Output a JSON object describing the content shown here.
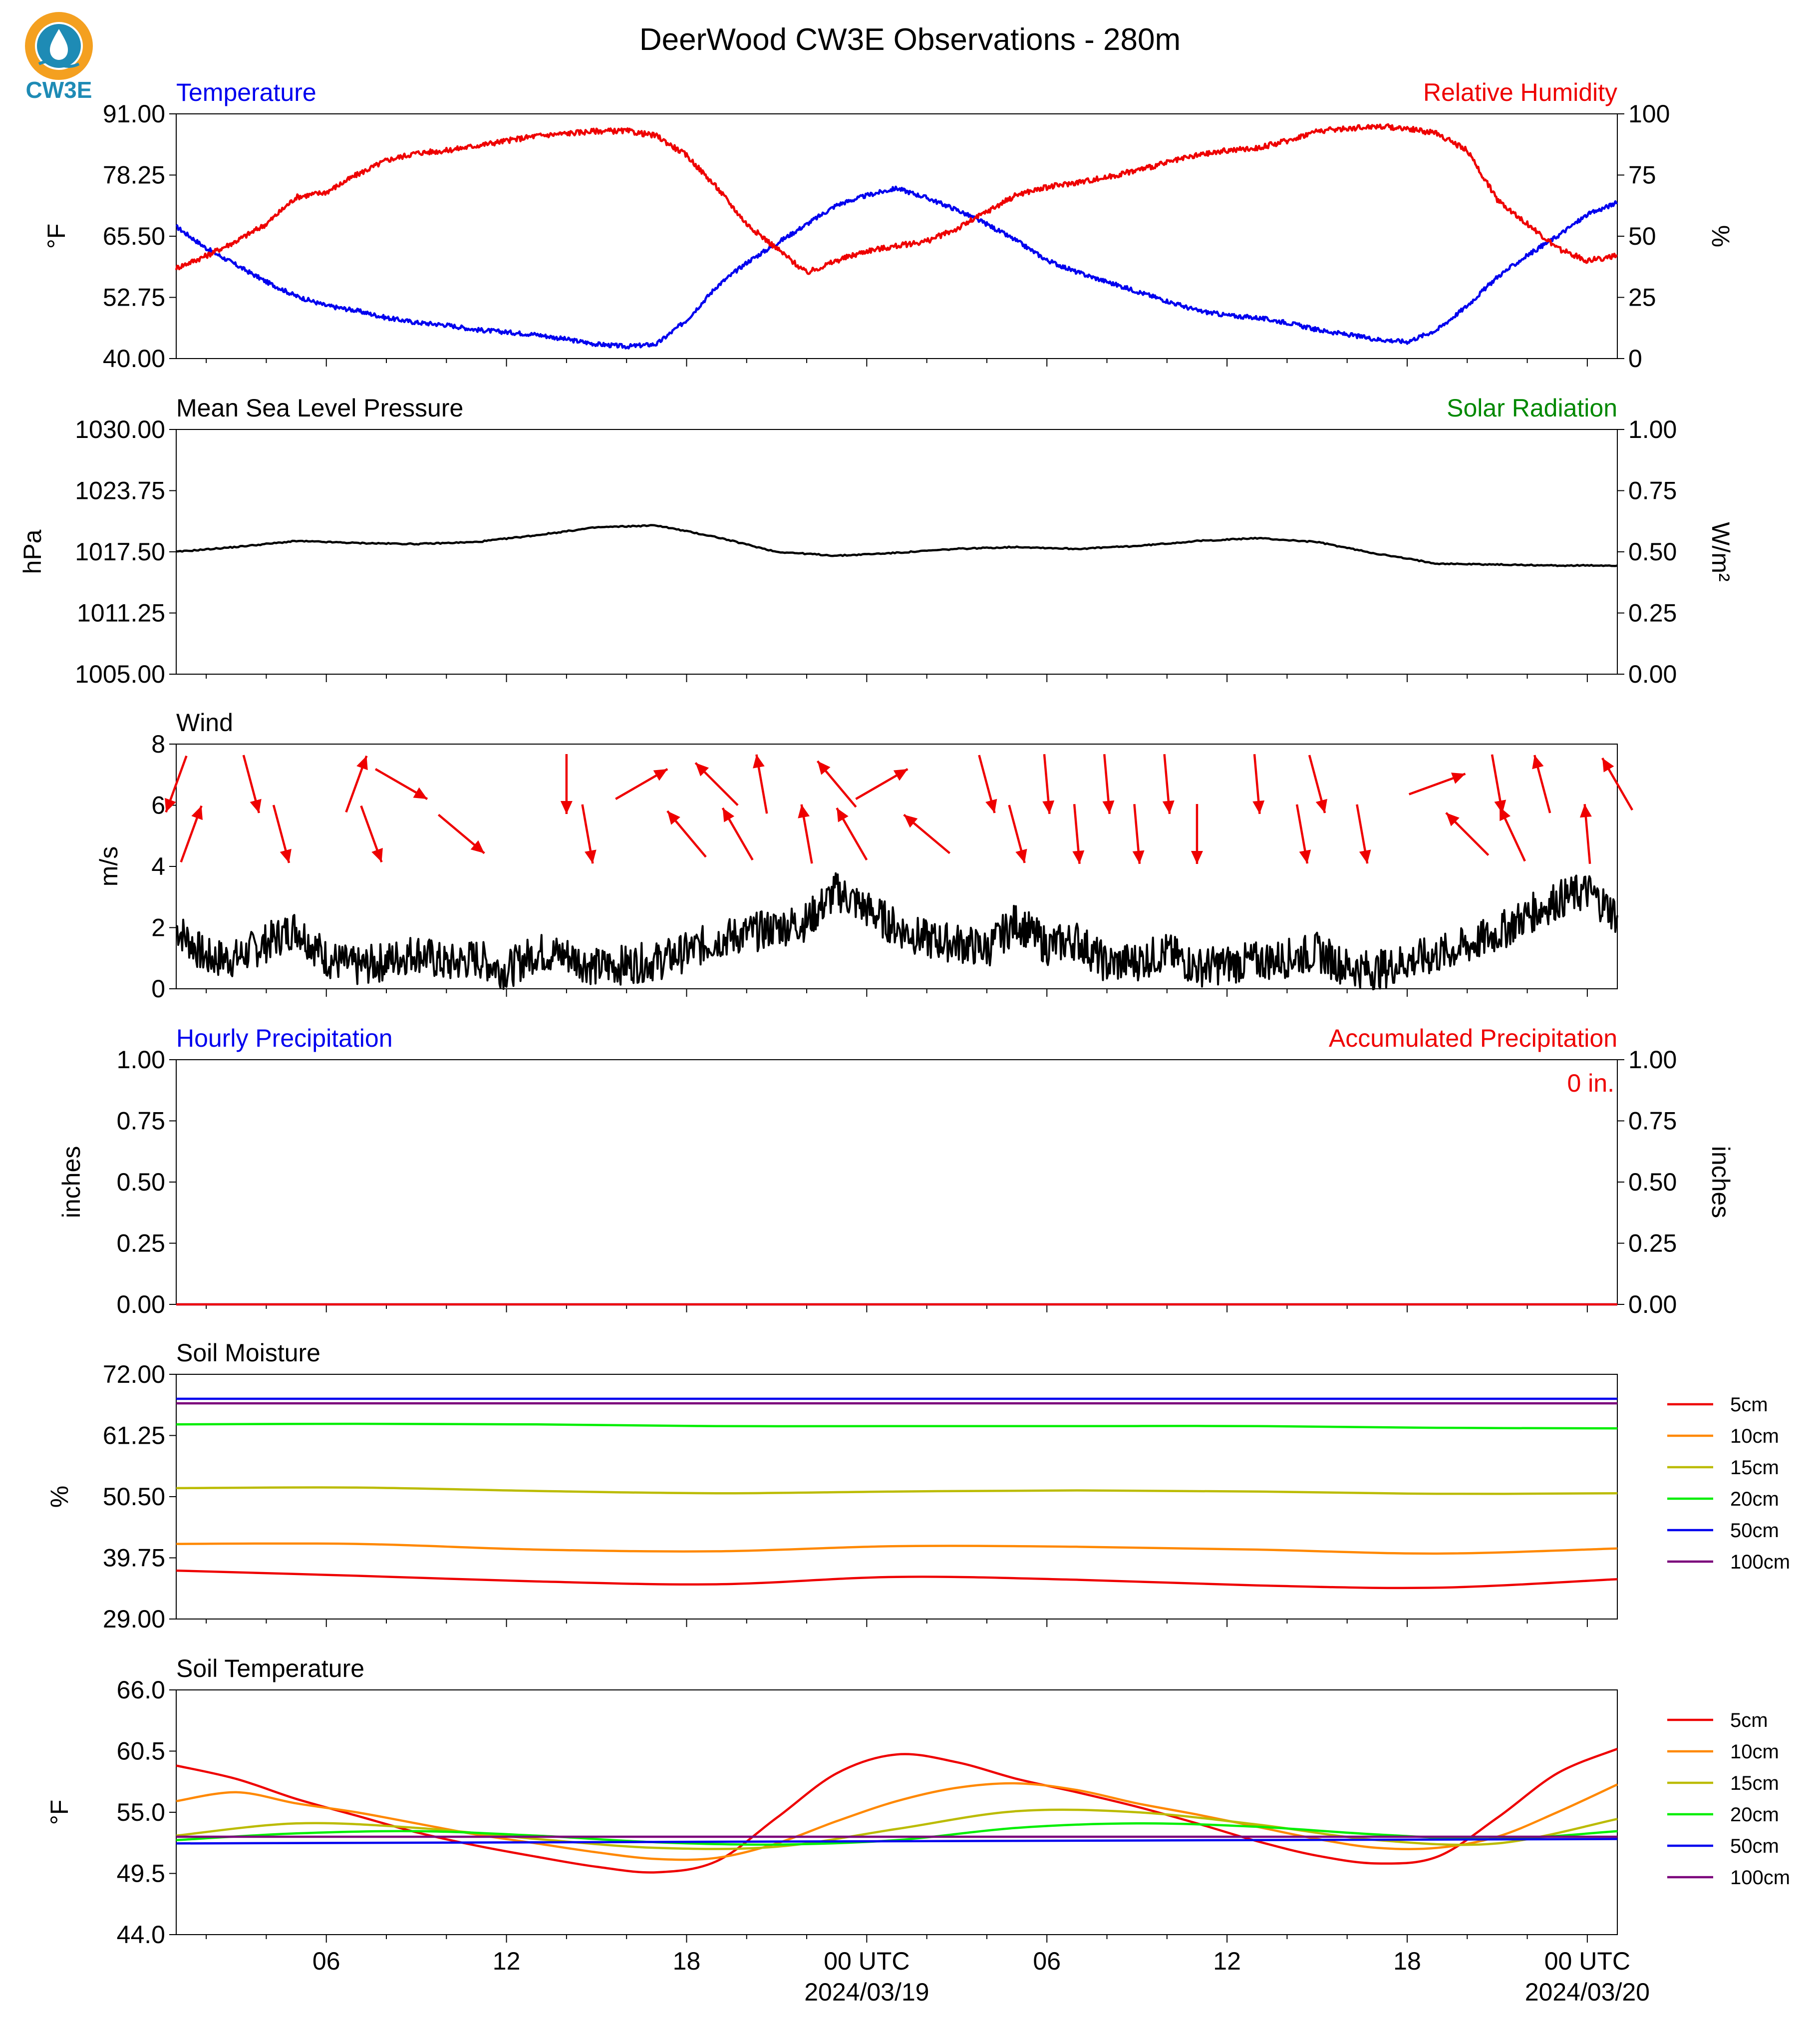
{
  "title": "DeerWood CW3E Observations - 280m",
  "logo": {
    "text": "CW3E",
    "colors": {
      "ring": "#f4a020",
      "drop": "#1e8bb5",
      "text": "#1e8bb5"
    }
  },
  "colors": {
    "temperature": "#0000ee",
    "humidity": "#ee0000",
    "pressure": "#000000",
    "solar": "#008800",
    "wind": "#000000",
    "arrows": "#ee0000",
    "precip_hourly": "#0000ee",
    "precip_accum": "#ee0000"
  },
  "x_axis": {
    "tick_labels": [
      "06",
      "12",
      "18",
      "00 UTC",
      "06",
      "12",
      "18",
      "00 UTC"
    ],
    "tick_hours": [
      6,
      12,
      18,
      24,
      30,
      36,
      42,
      48
    ],
    "date_labels": [
      "2024/03/19",
      "2024/03/20"
    ],
    "date_hours": [
      24,
      48
    ],
    "range_hours": [
      1,
      49
    ]
  },
  "chart_data": [
    {
      "type": "line",
      "title_left": "Temperature",
      "title_right": "Relative Humidity",
      "ylabel": "°F",
      "ylabel_right": "%",
      "ylim": [
        40,
        91
      ],
      "ylim_right": [
        0,
        100
      ],
      "yticks": [
        "40.00",
        "52.75",
        "65.50",
        "78.25",
        "91.00"
      ],
      "yticks_right": [
        "0",
        "25",
        "50",
        "75",
        "100"
      ],
      "series": [
        {
          "name": "Temperature",
          "axis": "left",
          "x": [
            1,
            2,
            3,
            4,
            5,
            6,
            7,
            8,
            9,
            10,
            11,
            12,
            13,
            14,
            15,
            16,
            17,
            18,
            19,
            20,
            21,
            22,
            23,
            24,
            25,
            26,
            27,
            28,
            29,
            30,
            31,
            32,
            33,
            34,
            35,
            36,
            37,
            38,
            39,
            40,
            41,
            42,
            43,
            44,
            45,
            46,
            47,
            48,
            49
          ],
          "y": [
            67.5,
            63,
            59.5,
            56,
            53,
            51,
            50,
            48.5,
            47.5,
            47,
            46,
            45.5,
            45,
            44,
            43,
            42.5,
            43,
            48,
            55,
            60,
            64,
            68,
            72,
            74,
            75.5,
            73.5,
            71,
            68,
            64.5,
            60.5,
            58,
            56,
            54,
            52,
            50,
            49,
            48.5,
            47.5,
            46,
            45,
            44,
            43.5,
            46,
            51,
            57,
            61.5,
            65.5,
            70,
            72.5
          ]
        },
        {
          "name": "Relative Humidity",
          "axis": "right",
          "x": [
            1,
            2,
            3,
            4,
            5,
            6,
            7,
            8,
            9,
            10,
            11,
            12,
            13,
            14,
            15,
            16,
            17,
            18,
            19,
            20,
            21,
            22,
            23,
            24,
            25,
            26,
            27,
            28,
            29,
            30,
            31,
            32,
            33,
            34,
            35,
            36,
            37,
            38,
            39,
            40,
            41,
            42,
            43,
            44,
            45,
            46,
            47,
            48,
            49
          ],
          "y": [
            37,
            42,
            48,
            55,
            66,
            68,
            75,
            81,
            84,
            85,
            87,
            89,
            91,
            92,
            93,
            93,
            91,
            83,
            70,
            55,
            45,
            35,
            40,
            44,
            46,
            48,
            53,
            60,
            67,
            70,
            72,
            74,
            77,
            80,
            83,
            85,
            86,
            89,
            93,
            94,
            95,
            94,
            92,
            85,
            65,
            55,
            45,
            40,
            42
          ]
        }
      ]
    },
    {
      "type": "line",
      "title_left": "Mean Sea Level Pressure",
      "title_right": "Solar Radiation",
      "ylabel": "hPa",
      "ylabel_right": "W/m²",
      "ylim": [
        1005,
        1030
      ],
      "ylim_right": [
        0,
        1
      ],
      "yticks": [
        "1005.00",
        "1011.25",
        "1017.50",
        "1023.75",
        "1030.00"
      ],
      "yticks_right": [
        "0.00",
        "0.25",
        "0.50",
        "0.75",
        "1.00"
      ],
      "series": [
        {
          "name": "Mean Sea Level Pressure",
          "axis": "left",
          "x": [
            1,
            3,
            5,
            7,
            9,
            11,
            13,
            15,
            17,
            19,
            21,
            23,
            25,
            27,
            29,
            31,
            33,
            35,
            37,
            39,
            41,
            43,
            45,
            47,
            49
          ],
          "y": [
            1017.5,
            1018,
            1018.6,
            1018.4,
            1018.3,
            1018.5,
            1019.2,
            1020,
            1020.2,
            1019,
            1017.5,
            1017.1,
            1017.4,
            1017.8,
            1018,
            1017.8,
            1018.1,
            1018.6,
            1018.9,
            1018.5,
            1017.3,
            1016.3,
            1016.2,
            1016.1,
            1016.1
          ]
        }
      ]
    },
    {
      "type": "line",
      "title_left": "Wind",
      "ylabel": "m/s",
      "ylim": [
        0,
        8
      ],
      "yticks": [
        "0",
        "2",
        "4",
        "6",
        "8"
      ],
      "series": [
        {
          "name": "Wind",
          "x": [
            1,
            2,
            3,
            4,
            5,
            6,
            7,
            8,
            9,
            10,
            11,
            12,
            13,
            14,
            15,
            16,
            17,
            18,
            19,
            20,
            21,
            22,
            23,
            24,
            25,
            26,
            27,
            28,
            29,
            30,
            31,
            32,
            33,
            34,
            35,
            36,
            37,
            38,
            39,
            40,
            41,
            42,
            43,
            44,
            45,
            46,
            47,
            48,
            49
          ],
          "y": [
            2,
            1,
            1,
            1.5,
            2,
            1,
            0.7,
            0.9,
            1.2,
            0.8,
            1,
            0.6,
            1.2,
            1.1,
            0.7,
            0.8,
            0.9,
            1.2,
            1.6,
            1.8,
            2,
            2.2,
            3.2,
            2.6,
            2,
            1.6,
            1.5,
            1.3,
            2.2,
            1.4,
            1.6,
            0.8,
            0.9,
            1.2,
            0.7,
            0.8,
            0.9,
            1,
            1.2,
            0.7,
            0.6,
            0.9,
            1.1,
            1.4,
            1.8,
            2.4,
            2.9,
            3.2,
            2.4
          ]
        }
      ],
      "arrows": {
        "x": [
          1,
          1.5,
          3.5,
          4.5,
          7,
          7.5,
          8.5,
          10.5,
          14,
          14.7,
          16.5,
          18,
          19,
          19.7,
          20.5,
          22,
          23,
          23.5,
          24.5,
          26,
          28,
          29,
          30,
          31,
          32,
          33,
          34,
          35,
          37,
          38.5,
          39,
          40.5,
          43,
          44,
          45,
          45.5,
          46.5,
          48,
          49
        ],
        "dir": [
          200,
          20,
          165,
          165,
          20,
          160,
          120,
          130,
          180,
          170,
          60,
          320,
          315,
          330,
          350,
          350,
          320,
          330,
          60,
          310,
          165,
          165,
          175,
          175,
          175,
          175,
          175,
          180,
          175,
          170,
          165,
          170,
          70,
          315,
          170,
          335,
          345,
          355,
          330
        ]
      }
    },
    {
      "type": "line",
      "title_left": "Hourly Precipitation",
      "title_right": "Accumulated Precipitation",
      "annotation": "0 in.",
      "ylabel": "inches",
      "ylabel_right": "inches",
      "ylim": [
        0,
        1
      ],
      "ylim_right": [
        0,
        1
      ],
      "yticks": [
        "0.00",
        "0.25",
        "0.50",
        "0.75",
        "1.00"
      ],
      "yticks_right": [
        "0.00",
        "0.25",
        "0.50",
        "0.75",
        "1.00"
      ],
      "series": [
        {
          "name": "Hourly Precipitation",
          "axis": "left",
          "x": [
            1,
            49
          ],
          "y": [
            0,
            0
          ]
        },
        {
          "name": "Accumulated Precipitation",
          "axis": "right",
          "x": [
            1,
            49
          ],
          "y": [
            0,
            0
          ]
        }
      ]
    },
    {
      "type": "line",
      "title_left": "Soil Moisture",
      "ylabel": "%",
      "ylim": [
        29,
        72
      ],
      "yticks": [
        "29.00",
        "39.75",
        "50.50",
        "61.25",
        "72.00"
      ],
      "legend": "right",
      "series": [
        {
          "name": "5cm",
          "color": "#ee0000",
          "x": [
            1,
            7,
            13,
            19,
            25,
            31,
            37,
            43,
            49
          ],
          "y": [
            37.5,
            36.6,
            35.6,
            35.1,
            36.4,
            35.9,
            34.9,
            34.5,
            36.0
          ]
        },
        {
          "name": "10cm",
          "color": "#ff8800",
          "x": [
            1,
            7,
            13,
            19,
            25,
            31,
            37,
            43,
            49
          ],
          "y": [
            42.2,
            42.2,
            41.2,
            40.9,
            41.8,
            41.7,
            41.2,
            40.5,
            41.4
          ]
        },
        {
          "name": "15cm",
          "color": "#bbbb00",
          "x": [
            1,
            7,
            13,
            19,
            25,
            31,
            37,
            43,
            49
          ],
          "y": [
            52.0,
            52.1,
            51.5,
            51.1,
            51.4,
            51.6,
            51.4,
            51.0,
            51.1
          ]
        },
        {
          "name": "20cm",
          "color": "#00ee00",
          "x": [
            1,
            7,
            13,
            19,
            25,
            31,
            37,
            43,
            49
          ],
          "y": [
            63.2,
            63.3,
            63.2,
            62.9,
            62.9,
            62.9,
            62.9,
            62.6,
            62.5
          ]
        },
        {
          "name": "50cm",
          "color": "#0000ee",
          "x": [
            1,
            49
          ],
          "y": [
            67.7,
            67.7
          ]
        },
        {
          "name": "100cm",
          "color": "#7b007b",
          "x": [
            1,
            49
          ],
          "y": [
            66.9,
            66.9
          ]
        }
      ]
    },
    {
      "type": "line",
      "title_left": "Soil Temperature",
      "ylabel": "°F",
      "ylim": [
        44,
        66
      ],
      "yticks": [
        "44.0",
        "49.5",
        "55.0",
        "60.5",
        "66.0"
      ],
      "legend": "right",
      "series": [
        {
          "name": "5cm",
          "color": "#ee0000",
          "x": [
            1,
            3,
            5,
            7,
            9,
            11,
            13,
            15,
            17,
            19,
            21,
            23,
            25,
            27,
            29,
            31,
            33,
            35,
            37,
            39,
            41,
            43,
            45,
            47,
            49
          ],
          "y": [
            59.2,
            58,
            56.2,
            54.7,
            53.2,
            52,
            51,
            50.1,
            49.6,
            50.6,
            54.5,
            58.5,
            60.2,
            59.5,
            58,
            56.8,
            55.5,
            54,
            52.4,
            51.1,
            50.4,
            51,
            54.5,
            58.5,
            60.7
          ]
        },
        {
          "name": "10cm",
          "color": "#ff8800",
          "x": [
            1,
            3,
            5,
            7,
            9,
            11,
            13,
            15,
            17,
            19,
            21,
            23,
            25,
            27,
            29,
            31,
            33,
            35,
            37,
            39,
            41,
            43,
            45,
            47,
            49
          ],
          "y": [
            56.0,
            56.8,
            55.8,
            55,
            54,
            53,
            52.2,
            51.4,
            50.8,
            50.9,
            52.2,
            54.2,
            56,
            57.2,
            57.6,
            57,
            55.8,
            54.8,
            53.7,
            52.6,
            51.8,
            51.8,
            52.8,
            55,
            57.5
          ]
        },
        {
          "name": "15cm",
          "color": "#bbbb00",
          "x": [
            1,
            5,
            9,
            13,
            17,
            21,
            25,
            29,
            33,
            37,
            41,
            45,
            49
          ],
          "y": [
            52.9,
            54.0,
            53.6,
            52.6,
            51.8,
            51.9,
            53.5,
            55.1,
            55.0,
            53.9,
            52.5,
            52.2,
            54.4
          ]
        },
        {
          "name": "20cm",
          "color": "#00ee00",
          "x": [
            1,
            5,
            9,
            13,
            17,
            21,
            25,
            29,
            33,
            37,
            41,
            45,
            49
          ],
          "y": [
            52.5,
            53.1,
            53.3,
            52.9,
            52.3,
            52.1,
            52.5,
            53.6,
            54.0,
            53.7,
            53.0,
            52.6,
            53.3
          ]
        },
        {
          "name": "50cm",
          "color": "#0000ee",
          "x": [
            1,
            49
          ],
          "y": [
            52.2,
            52.6
          ]
        },
        {
          "name": "100cm",
          "color": "#7b007b",
          "x": [
            1,
            49
          ],
          "y": [
            52.8,
            52.8
          ]
        }
      ]
    }
  ]
}
